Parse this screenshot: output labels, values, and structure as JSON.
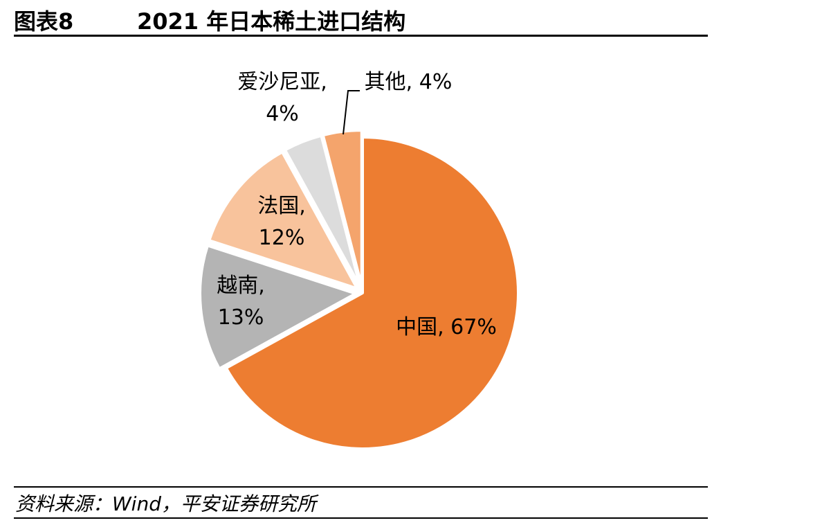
{
  "figure": {
    "label": "图表8",
    "title": "2021 年日本稀土进口结构",
    "source": "资料来源：Wind，平安证券研究所"
  },
  "chart_data": {
    "type": "pie",
    "title": "2021 年日本稀土进口结构",
    "start": "12 o'clock",
    "direction": "clockwise",
    "slices": [
      {
        "name": "中国",
        "value": 67,
        "label": "中国, 67%",
        "color": "#ED7D31",
        "exploded": false
      },
      {
        "name": "越南",
        "value": 13,
        "label_lines": [
          "越南,",
          "13%"
        ],
        "color": "#B4B4B4",
        "exploded": true
      },
      {
        "name": "法国",
        "value": 12,
        "label_lines": [
          "法国,",
          "12%"
        ],
        "color": "#F8C39C",
        "exploded": true
      },
      {
        "name": "爱沙尼亚",
        "value": 4,
        "label_lines": [
          "爱沙尼亚,",
          "4%"
        ],
        "color": "#DCDCDC",
        "exploded": true
      },
      {
        "name": "其他",
        "value": 4,
        "label": "其他, 4%",
        "color": "#F4A46C",
        "exploded": true
      }
    ]
  }
}
